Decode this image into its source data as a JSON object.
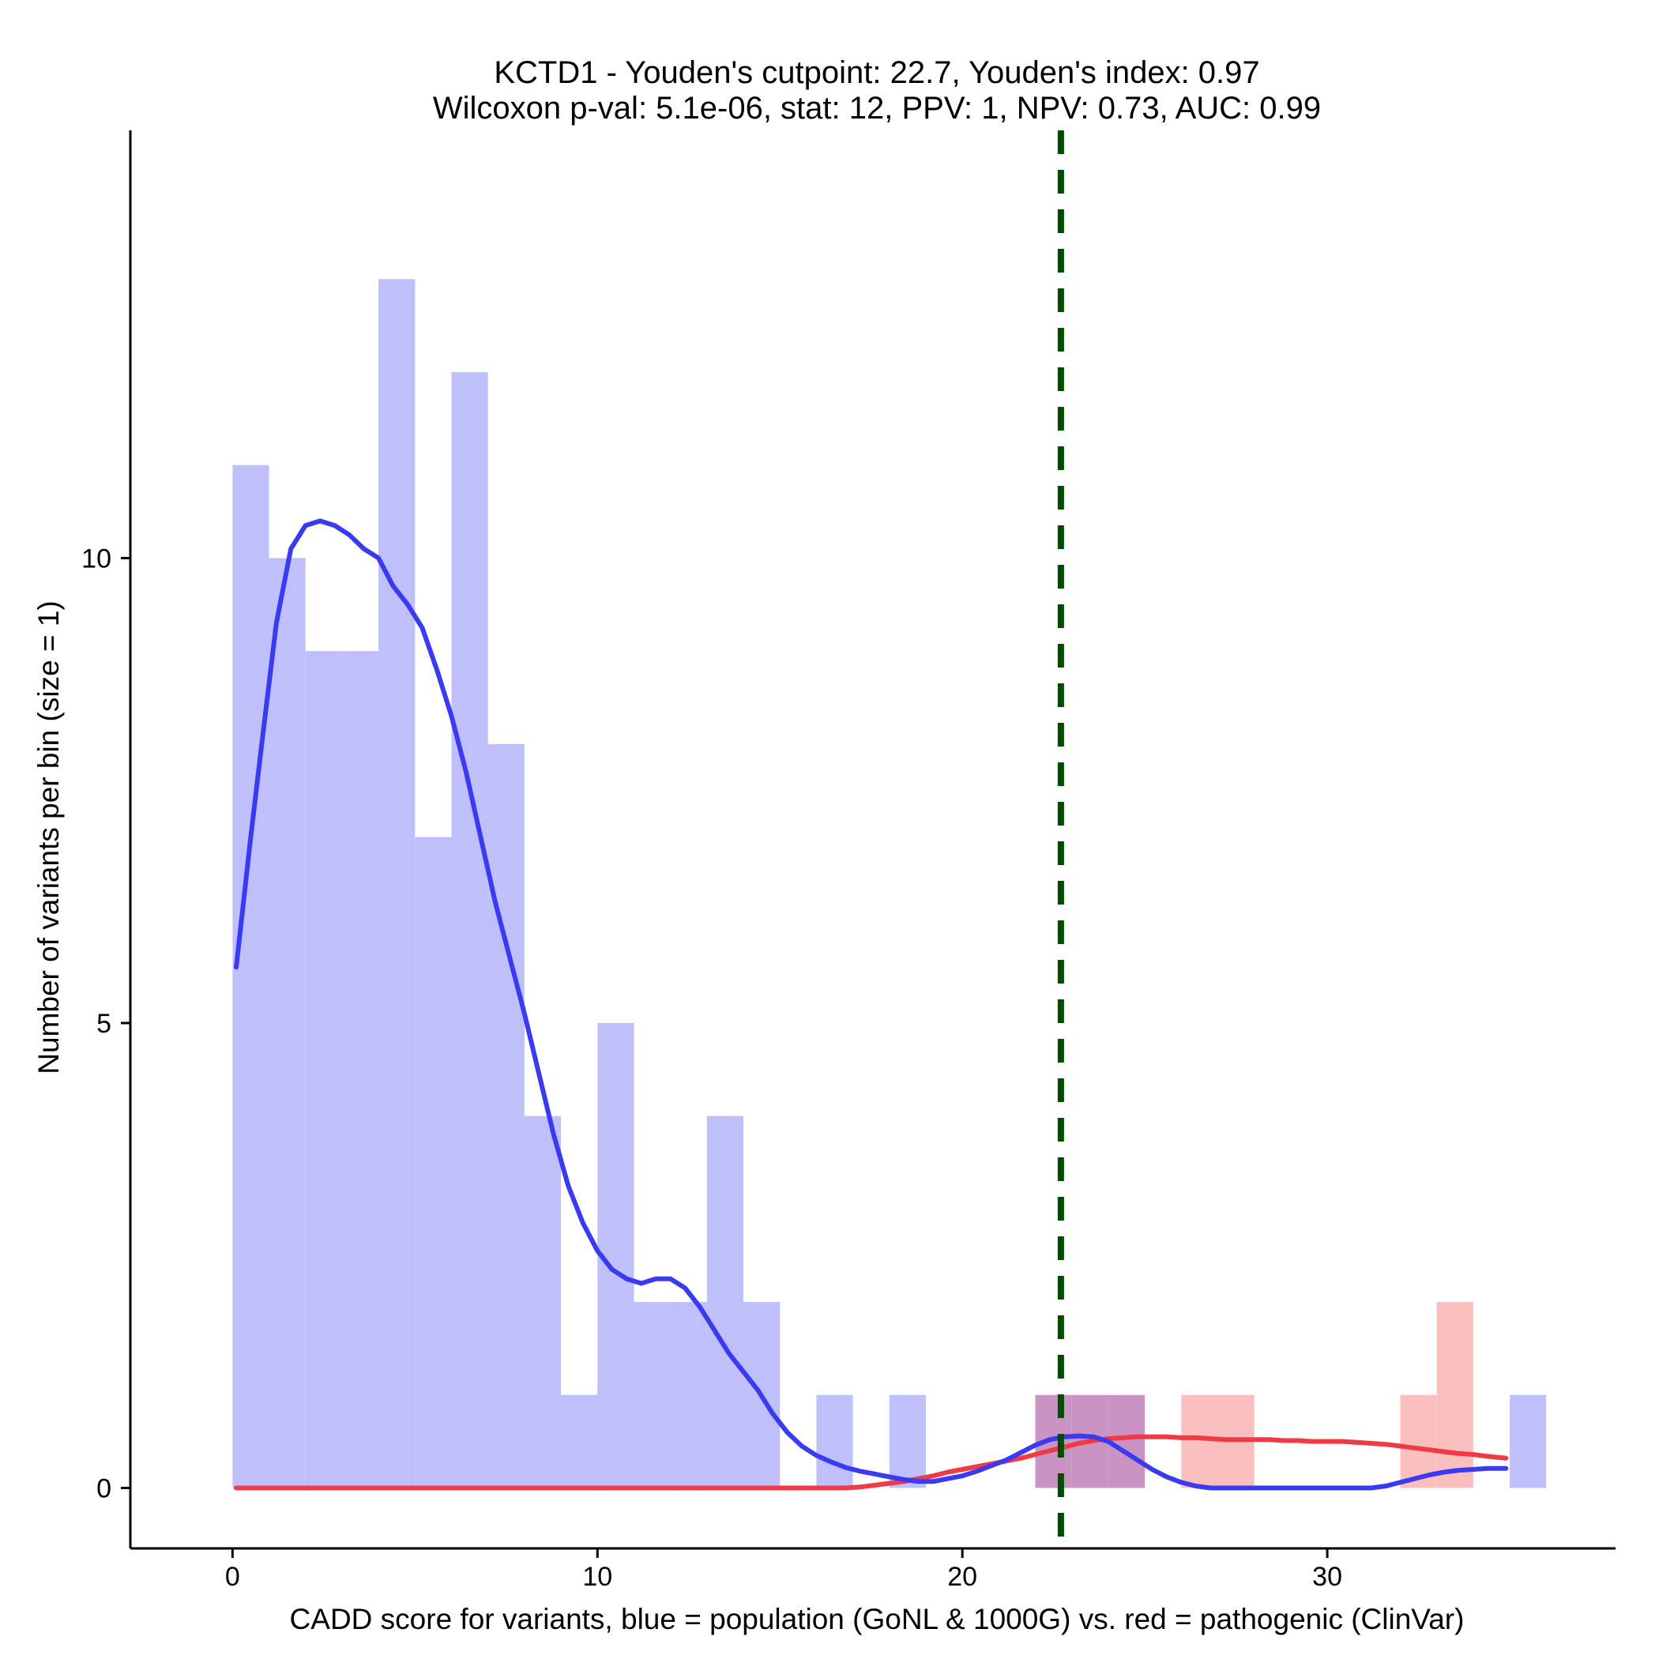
{
  "chart_data": {
    "type": "bar",
    "title_lines": [
      "KCTD1 - Youden's cutpoint: 22.7, Youden's index: 0.97",
      "Wilcoxon p-val: 5.1e-06, stat: 12, PPV: 1, NPV: 0.73, AUC: 0.99"
    ],
    "xlabel": "CADD score for variants, blue = population (GoNL & 1000G) vs. red = pathogenic (ClinVar)",
    "ylabel": "Number of variants per bin (size = 1)",
    "xlim": [
      -2.8,
      37.9
    ],
    "ylim": [
      -0.65,
      14.6
    ],
    "xticks": [
      0,
      10,
      20,
      30
    ],
    "yticks": [
      0,
      5,
      10
    ],
    "bin_size": 1,
    "cutpoint": 22.7,
    "colors": {
      "population_bar": "#bfbffc",
      "pathogenic_bar": "#fcbfbf",
      "overlap_bar": "#c994c4",
      "population_line": "#3a3af0",
      "pathogenic_line": "#f03a46",
      "cutpoint_line": "#004d00"
    },
    "series": [
      {
        "name": "population",
        "bins": [
          {
            "x0": 0,
            "x1": 1,
            "count": 11
          },
          {
            "x0": 1,
            "x1": 2,
            "count": 10
          },
          {
            "x0": 2,
            "x1": 3,
            "count": 9
          },
          {
            "x0": 3,
            "x1": 4,
            "count": 9
          },
          {
            "x0": 4,
            "x1": 5,
            "count": 13
          },
          {
            "x0": 5,
            "x1": 6,
            "count": 7
          },
          {
            "x0": 6,
            "x1": 7,
            "count": 12
          },
          {
            "x0": 7,
            "x1": 8,
            "count": 8
          },
          {
            "x0": 8,
            "x1": 9,
            "count": 4
          },
          {
            "x0": 9,
            "x1": 10,
            "count": 1
          },
          {
            "x0": 10,
            "x1": 11,
            "count": 5
          },
          {
            "x0": 11,
            "x1": 12,
            "count": 2
          },
          {
            "x0": 12,
            "x1": 13,
            "count": 2
          },
          {
            "x0": 13,
            "x1": 14,
            "count": 4
          },
          {
            "x0": 14,
            "x1": 15,
            "count": 2
          },
          {
            "x0": 16,
            "x1": 17,
            "count": 1
          },
          {
            "x0": 18,
            "x1": 19,
            "count": 1
          },
          {
            "x0": 22,
            "x1": 23,
            "count": 1
          },
          {
            "x0": 23,
            "x1": 24,
            "count": 1
          },
          {
            "x0": 24,
            "x1": 25,
            "count": 1
          },
          {
            "x0": 35,
            "x1": 36,
            "count": 1
          }
        ],
        "density": [
          [
            0.1,
            5.6
          ],
          [
            0.5,
            7.0
          ],
          [
            0.8,
            8.0
          ],
          [
            1.2,
            9.3
          ],
          [
            1.6,
            10.1
          ],
          [
            2.0,
            10.35
          ],
          [
            2.4,
            10.4
          ],
          [
            2.8,
            10.35
          ],
          [
            3.2,
            10.25
          ],
          [
            3.6,
            10.1
          ],
          [
            4.0,
            10.0
          ],
          [
            4.4,
            9.7
          ],
          [
            4.8,
            9.5
          ],
          [
            5.2,
            9.25
          ],
          [
            5.6,
            8.8
          ],
          [
            6.0,
            8.3
          ],
          [
            6.4,
            7.7
          ],
          [
            6.8,
            7.0
          ],
          [
            7.2,
            6.3
          ],
          [
            7.6,
            5.7
          ],
          [
            8.0,
            5.1
          ],
          [
            8.4,
            4.45
          ],
          [
            8.8,
            3.8
          ],
          [
            9.2,
            3.25
          ],
          [
            9.6,
            2.85
          ],
          [
            10.0,
            2.55
          ],
          [
            10.4,
            2.35
          ],
          [
            10.8,
            2.25
          ],
          [
            11.2,
            2.2
          ],
          [
            11.6,
            2.25
          ],
          [
            12.0,
            2.25
          ],
          [
            12.4,
            2.15
          ],
          [
            12.8,
            1.95
          ],
          [
            13.2,
            1.7
          ],
          [
            13.6,
            1.45
          ],
          [
            14.0,
            1.25
          ],
          [
            14.4,
            1.05
          ],
          [
            14.8,
            0.8
          ],
          [
            15.2,
            0.6
          ],
          [
            15.6,
            0.45
          ],
          [
            16.0,
            0.35
          ],
          [
            16.4,
            0.28
          ],
          [
            16.8,
            0.22
          ],
          [
            17.2,
            0.18
          ],
          [
            17.6,
            0.15
          ],
          [
            18.0,
            0.12
          ],
          [
            18.4,
            0.09
          ],
          [
            18.8,
            0.07
          ],
          [
            19.2,
            0.07
          ],
          [
            19.6,
            0.1
          ],
          [
            20.0,
            0.13
          ],
          [
            20.4,
            0.18
          ],
          [
            20.8,
            0.24
          ],
          [
            21.2,
            0.3
          ],
          [
            21.6,
            0.38
          ],
          [
            22.0,
            0.46
          ],
          [
            22.4,
            0.52
          ],
          [
            22.8,
            0.55
          ],
          [
            23.2,
            0.56
          ],
          [
            23.6,
            0.55
          ],
          [
            24.0,
            0.5
          ],
          [
            24.4,
            0.4
          ],
          [
            24.8,
            0.3
          ],
          [
            25.2,
            0.2
          ],
          [
            25.6,
            0.12
          ],
          [
            26.0,
            0.06
          ],
          [
            26.4,
            0.02
          ],
          [
            26.8,
            0.0
          ],
          [
            27.6,
            0.0
          ],
          [
            28.4,
            0.0
          ],
          [
            29.2,
            0.0
          ],
          [
            30.0,
            0.0
          ],
          [
            30.8,
            0.0
          ],
          [
            31.2,
            0.0
          ],
          [
            31.6,
            0.02
          ],
          [
            32.0,
            0.06
          ],
          [
            32.4,
            0.1
          ],
          [
            32.8,
            0.14
          ],
          [
            33.2,
            0.17
          ],
          [
            33.6,
            0.19
          ],
          [
            34.0,
            0.2
          ],
          [
            34.4,
            0.21
          ],
          [
            34.9,
            0.21
          ]
        ]
      },
      {
        "name": "pathogenic",
        "bins": [
          {
            "x0": 22,
            "x1": 23,
            "count": 1
          },
          {
            "x0": 23,
            "x1": 24,
            "count": 1
          },
          {
            "x0": 24,
            "x1": 25,
            "count": 1
          },
          {
            "x0": 26,
            "x1": 27,
            "count": 1
          },
          {
            "x0": 27,
            "x1": 28,
            "count": 1
          },
          {
            "x0": 32,
            "x1": 33,
            "count": 1
          },
          {
            "x0": 33,
            "x1": 34,
            "count": 2
          }
        ],
        "density": [
          [
            0.1,
            0.0
          ],
          [
            5.0,
            0.0
          ],
          [
            10.0,
            0.0
          ],
          [
            15.0,
            0.0
          ],
          [
            16.8,
            0.0
          ],
          [
            17.2,
            0.01
          ],
          [
            17.6,
            0.03
          ],
          [
            18.0,
            0.05
          ],
          [
            18.4,
            0.07
          ],
          [
            18.8,
            0.1
          ],
          [
            19.2,
            0.13
          ],
          [
            19.6,
            0.17
          ],
          [
            20.0,
            0.2
          ],
          [
            20.4,
            0.23
          ],
          [
            20.8,
            0.26
          ],
          [
            21.2,
            0.29
          ],
          [
            21.6,
            0.32
          ],
          [
            22.0,
            0.36
          ],
          [
            22.4,
            0.4
          ],
          [
            22.8,
            0.44
          ],
          [
            23.2,
            0.48
          ],
          [
            23.6,
            0.51
          ],
          [
            24.0,
            0.53
          ],
          [
            24.4,
            0.54
          ],
          [
            24.8,
            0.55
          ],
          [
            25.2,
            0.55
          ],
          [
            25.6,
            0.55
          ],
          [
            26.0,
            0.54
          ],
          [
            26.4,
            0.54
          ],
          [
            26.8,
            0.53
          ],
          [
            27.2,
            0.52
          ],
          [
            27.6,
            0.52
          ],
          [
            28.0,
            0.52
          ],
          [
            28.4,
            0.52
          ],
          [
            28.8,
            0.51
          ],
          [
            29.2,
            0.51
          ],
          [
            29.6,
            0.5
          ],
          [
            30.0,
            0.5
          ],
          [
            30.4,
            0.5
          ],
          [
            30.8,
            0.49
          ],
          [
            31.2,
            0.48
          ],
          [
            31.6,
            0.47
          ],
          [
            32.0,
            0.45
          ],
          [
            32.4,
            0.43
          ],
          [
            32.8,
            0.41
          ],
          [
            33.2,
            0.39
          ],
          [
            33.6,
            0.37
          ],
          [
            34.0,
            0.36
          ],
          [
            34.4,
            0.34
          ],
          [
            34.9,
            0.32
          ]
        ]
      }
    ]
  }
}
